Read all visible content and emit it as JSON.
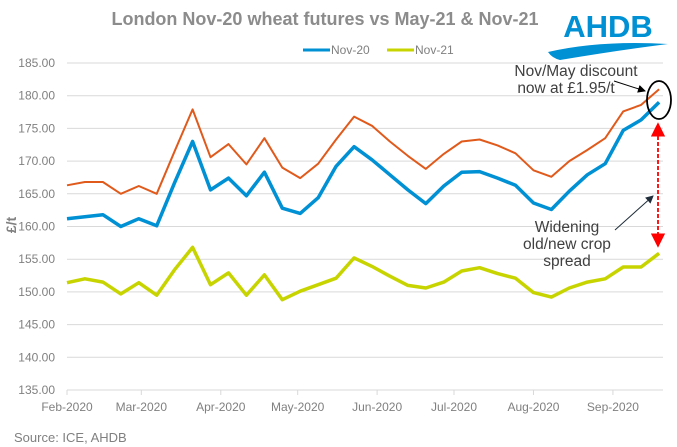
{
  "chart_data": {
    "type": "line",
    "title": "London Nov-20 wheat futures vs May-21 & Nov-21",
    "ylabel": "£/t",
    "xlabel": "",
    "ylim": [
      135,
      185
    ],
    "yticks": [
      "185.00",
      "180.00",
      "175.00",
      "170.00",
      "165.00",
      "160.00",
      "155.00",
      "150.00",
      "145.00",
      "140.00",
      "135.00"
    ],
    "xticks": [
      {
        "date": "2020-02-01",
        "label": "Feb-2020"
      },
      {
        "date": "2020-03-01",
        "label": "Mar-2020"
      },
      {
        "date": "2020-04-01",
        "label": "Apr-2020"
      },
      {
        "date": "2020-05-01",
        "label": "May-2020"
      },
      {
        "date": "2020-06-01",
        "label": "Jun-2020"
      },
      {
        "date": "2020-07-01",
        "label": "Jul-2020"
      },
      {
        "date": "2020-08-01",
        "label": "Aug-2020"
      },
      {
        "date": "2020-09-01",
        "label": "Sep-2020"
      }
    ],
    "grid": true,
    "legend_position": "top",
    "x_start": "2020-02-01",
    "x_step_days": 7,
    "series": [
      {
        "name": "Nov-20",
        "color": "#0090d4",
        "legend": true,
        "values": [
          161.2,
          161.5,
          161.8,
          160.0,
          161.2,
          160.1,
          166.7,
          173.0,
          165.6,
          167.4,
          164.7,
          168.3,
          162.8,
          162.0,
          164.4,
          169.2,
          172.2,
          170.2,
          167.9,
          165.6,
          163.5,
          166.2,
          168.3,
          168.4,
          167.4,
          166.3,
          163.6,
          162.6,
          165.4,
          167.9,
          169.6,
          174.7,
          176.3,
          179.0
        ]
      },
      {
        "color": "#e05a1c",
        "legend": false,
        "values": [
          166.3,
          166.8,
          166.8,
          165.0,
          166.2,
          165.0,
          171.5,
          177.9,
          170.6,
          172.6,
          169.5,
          173.5,
          169.0,
          167.4,
          169.6,
          173.3,
          176.8,
          175.4,
          173.0,
          170.8,
          168.8,
          171.1,
          173.0,
          173.3,
          172.4,
          171.2,
          168.6,
          167.6,
          170.0,
          171.7,
          173.5,
          177.6,
          178.6,
          181.0
        ]
      },
      {
        "name": "Nov-21",
        "color": "#c8d400",
        "legend": true,
        "values": [
          151.4,
          152.0,
          151.5,
          149.7,
          151.4,
          149.5,
          153.4,
          156.8,
          151.1,
          152.9,
          149.5,
          152.6,
          148.8,
          150.1,
          151.1,
          152.1,
          155.2,
          153.9,
          152.4,
          151.0,
          150.6,
          151.5,
          153.2,
          153.7,
          152.8,
          152.1,
          149.9,
          149.2,
          150.6,
          151.5,
          152.0,
          153.8,
          153.8,
          155.9
        ]
      }
    ],
    "annotations": [
      {
        "lines": [
          "Nov/May discount",
          "now at £1.95/t"
        ]
      },
      {
        "lines": [
          "Widening",
          "old/new crop",
          "spread"
        ]
      }
    ]
  },
  "logo": "AHDB",
  "source": "Source: ICE, AHDB"
}
